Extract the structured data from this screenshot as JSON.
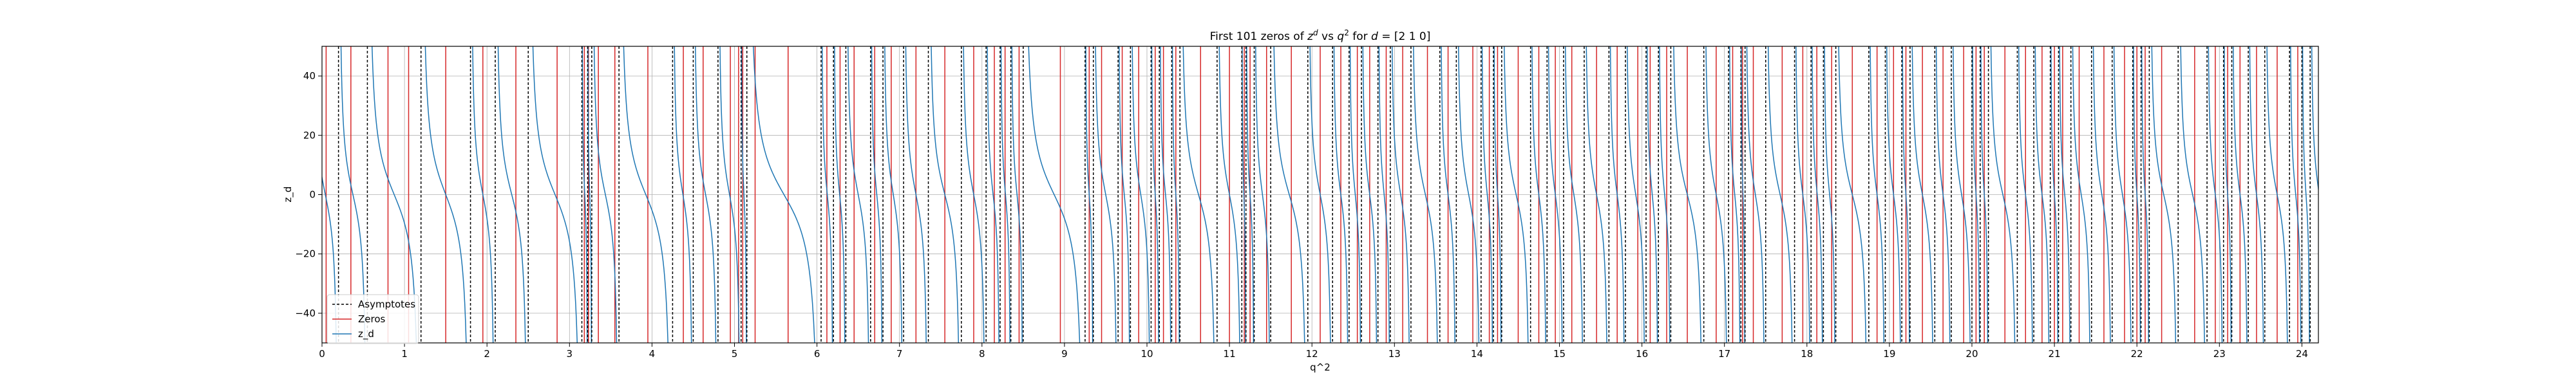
{
  "chart_data": {
    "type": "line",
    "title": "First 101 zeros of $z^d$ vs $q^2$ for $d$ = [2 1 0]",
    "title_parts": {
      "prefix": "First 101 zeros of ",
      "z": "z",
      "z_sup": "d",
      "vs": " vs ",
      "q": "q",
      "q_sup": "2",
      "for": " for ",
      "d": "d",
      "suffix": " = [2 1 0]"
    },
    "xlabel": "q^2",
    "ylabel": "z_d",
    "xlim": [
      0,
      24.2
    ],
    "ylim": [
      -50,
      50
    ],
    "x_ticks": [
      0,
      1,
      2,
      3,
      4,
      5,
      6,
      7,
      8,
      9,
      10,
      11,
      12,
      13,
      14,
      15,
      16,
      17,
      18,
      19,
      20,
      21,
      22,
      23,
      24
    ],
    "x_tick_labels": [
      "0",
      "1",
      "2",
      "3",
      "4",
      "5",
      "6",
      "7",
      "8",
      "9",
      "10",
      "11",
      "12",
      "13",
      "14",
      "15",
      "16",
      "17",
      "18",
      "19",
      "20",
      "21",
      "22",
      "23",
      "24"
    ],
    "y_ticks": [
      -40,
      -20,
      0,
      20,
      40
    ],
    "y_tick_labels": [
      "−40",
      "−20",
      "0",
      "20",
      "40"
    ],
    "grid": true,
    "legend_position": "lower-left",
    "legend": [
      "Asymptotes",
      "Zeros",
      "z_d"
    ],
    "colors": {
      "asymptote": "#000000",
      "zero": "#d62728",
      "curve": "#1f77b4",
      "grid": "#b0b0b0"
    },
    "asymptotes": [
      0.2,
      0.55,
      1.2,
      1.8,
      2.1,
      2.5,
      3.15,
      3.22,
      3.27,
      3.6,
      4.25,
      4.5,
      4.8,
      5.08,
      5.15,
      6.05,
      6.2,
      6.35,
      6.65,
      6.8,
      7.05,
      7.35,
      7.75,
      8.05,
      8.22,
      8.35,
      8.5,
      9.25,
      9.35,
      9.65,
      9.8,
      10.05,
      10.15,
      10.3,
      10.4,
      10.85,
      11.15,
      11.2,
      11.3,
      11.5,
      11.95,
      12.25,
      12.45,
      12.6,
      12.8,
      12.95,
      13.2,
      13.55,
      13.75,
      14.05,
      14.2,
      14.3,
      14.65,
      14.85,
      15.05,
      15.3,
      15.6,
      15.8,
      16.05,
      16.2,
      16.35,
      16.75,
      17.05,
      17.2,
      17.25,
      17.5,
      17.85,
      18.05,
      18.2,
      18.35,
      18.75,
      18.95,
      19.15,
      19.25,
      19.55,
      19.75,
      20.0,
      20.1,
      20.2,
      20.55,
      20.75,
      20.95,
      21.05,
      21.2,
      21.45,
      21.7,
      21.95,
      22.05,
      22.15,
      22.5,
      22.85,
      23.05,
      23.15,
      23.35,
      23.55,
      23.85,
      24.0,
      24.1
    ],
    "zeros": [
      0.05,
      0.35,
      0.8,
      1.05,
      1.5,
      1.95,
      2.35,
      2.85,
      3.18,
      3.23,
      3.35,
      3.55,
      3.95,
      4.38,
      4.62,
      4.95,
      5.05,
      5.1,
      5.25,
      5.65,
      6.12,
      6.28,
      6.45,
      6.7,
      6.9,
      7.2,
      7.55,
      7.9,
      8.15,
      8.28,
      8.45,
      8.95,
      9.3,
      9.45,
      9.7,
      9.9,
      10.1,
      10.2,
      10.35,
      10.65,
      11.0,
      11.18,
      11.25,
      11.45,
      11.75,
      12.1,
      12.35,
      12.55,
      12.7,
      12.9,
      13.1,
      13.4,
      13.65,
      13.95,
      14.15,
      14.25,
      14.5,
      14.75,
      14.95,
      15.15,
      15.45,
      15.7,
      15.95,
      16.1,
      16.3,
      16.55,
      16.9,
      17.1,
      17.22,
      17.35,
      17.7,
      17.95,
      18.12,
      18.3,
      18.55,
      18.85,
      19.05,
      19.2,
      19.4,
      19.65,
      19.9,
      20.05,
      20.15,
      20.4,
      20.65,
      20.85,
      21.0,
      21.1,
      21.3,
      21.6,
      21.85,
      22.0,
      22.1,
      22.3,
      22.7,
      22.95,
      23.1,
      23.25,
      23.45,
      23.7,
      23.95
    ]
  }
}
